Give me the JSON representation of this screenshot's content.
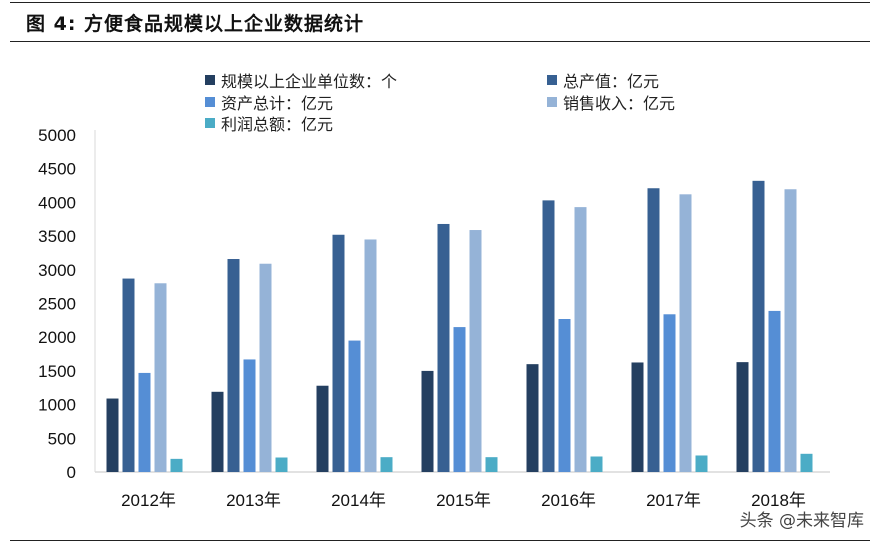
{
  "title": "图 4:  方便食品规模以上企业数据统计",
  "watermark": "头条 @未来智库",
  "chart_data": {
    "type": "bar",
    "title": "",
    "xlabel": "",
    "ylabel": "",
    "ylim": [
      0,
      5000
    ],
    "yticks": [
      0,
      500,
      1000,
      1500,
      2000,
      2500,
      3000,
      3500,
      4000,
      4500,
      5000
    ],
    "grid": false,
    "legend_position": "top",
    "categories": [
      "2012年",
      "2013年",
      "2014年",
      "2015年",
      "2016年",
      "2017年",
      "2018年"
    ],
    "series": [
      {
        "name": "规模以上企业单位数：个",
        "color": "#243F60",
        "values": [
          1090,
          1190,
          1280,
          1500,
          1600,
          1625,
          1630
        ]
      },
      {
        "name": "总产值：亿元",
        "color": "#376092",
        "values": [
          2870,
          3160,
          3520,
          3680,
          4030,
          4210,
          4320
        ]
      },
      {
        "name": "资产总计：亿元",
        "color": "#558ED5",
        "values": [
          1470,
          1670,
          1950,
          2150,
          2270,
          2340,
          2390
        ]
      },
      {
        "name": "销售收入：亿元",
        "color": "#95B3D7",
        "values": [
          2800,
          3090,
          3450,
          3590,
          3930,
          4120,
          4195
        ]
      },
      {
        "name": "利润总额：亿元",
        "color": "#4BACC6",
        "values": [
          195,
          215,
          220,
          220,
          230,
          245,
          270
        ]
      }
    ]
  }
}
